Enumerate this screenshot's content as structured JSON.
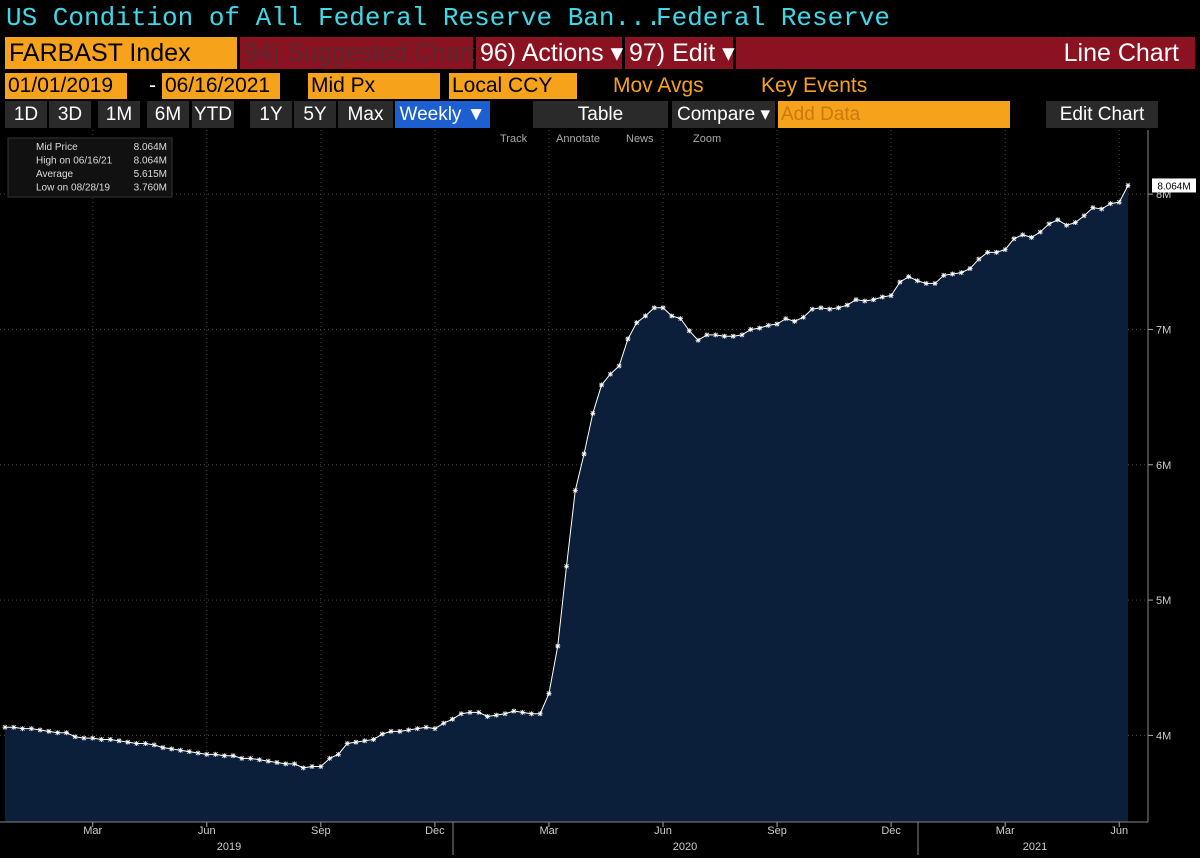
{
  "header": {
    "title": "US Condition of All Federal Reserve Ban...",
    "source": "Federal Reserve"
  },
  "toolbar": {
    "ticker": "FARBAST Index",
    "suggested": "94) Suggested Charts",
    "actions": "96) Actions ▾",
    "edit": "97) Edit ▾",
    "chart_kind": "Line Chart",
    "start_date": "01/01/2019",
    "dash": "-",
    "end_date": "06/16/2021",
    "field": "Mid Px",
    "currency": "Local CCY",
    "mov_avgs": "Mov Avgs",
    "key_events": "Key Events",
    "periods": [
      "1D",
      "3D",
      "1M",
      "6M",
      "YTD",
      "1Y",
      "5Y",
      "Max"
    ],
    "frequency": "Weekly ▼",
    "table": "Table",
    "compare": "Compare ▾",
    "add_data": "Add Data",
    "edit_chart": "Edit Chart",
    "tools": [
      "Track",
      "Annotate",
      "News",
      "Zoom"
    ]
  },
  "chart_data": {
    "type": "area",
    "color": "#ffffff",
    "fill": "#0b1f3a",
    "legend": [
      {
        "label": "Mid Price",
        "value": "8.064M"
      },
      {
        "label": "High on 06/16/21",
        "value": "8.064M"
      },
      {
        "label": "Average",
        "value": "5.615M"
      },
      {
        "label": "Low on 08/28/19",
        "value": "3.760M"
      }
    ],
    "categories": [
      null,
      null,
      null,
      null,
      null,
      null,
      null,
      null,
      null,
      null,
      "Mar",
      null,
      null,
      null,
      null,
      null,
      null,
      null,
      null,
      null,
      null,
      null,
      null,
      "Jun",
      null,
      null,
      null,
      null,
      null,
      null,
      null,
      null,
      null,
      null,
      null,
      null,
      "Sep",
      null,
      null,
      null,
      null,
      null,
      null,
      null,
      null,
      null,
      null,
      null,
      null,
      "Dec",
      null,
      null,
      null,
      null,
      null,
      null,
      null,
      null,
      null,
      null,
      null,
      null,
      "Mar",
      null,
      null,
      null,
      null,
      null,
      null,
      null,
      null,
      null,
      null,
      null,
      null,
      "Jun",
      null,
      null,
      null,
      null,
      null,
      null,
      null,
      null,
      null,
      null,
      null,
      null,
      "Sep",
      null,
      null,
      null,
      null,
      null,
      null,
      null,
      null,
      null,
      null,
      null,
      null,
      "Dec",
      null,
      null,
      null,
      null,
      null,
      null,
      null,
      null,
      null,
      null,
      null,
      null,
      "Mar",
      null,
      null,
      null,
      null,
      null,
      null,
      null,
      null,
      null,
      null,
      null,
      null,
      "Jun",
      null
    ],
    "values": [
      4.06,
      4.06,
      4.05,
      4.05,
      4.04,
      4.03,
      4.02,
      4.02,
      3.99,
      3.98,
      3.98,
      3.97,
      3.97,
      3.96,
      3.95,
      3.94,
      3.94,
      3.93,
      3.91,
      3.9,
      3.89,
      3.88,
      3.87,
      3.86,
      3.86,
      3.85,
      3.85,
      3.83,
      3.83,
      3.82,
      3.81,
      3.8,
      3.79,
      3.79,
      3.76,
      3.77,
      3.77,
      3.83,
      3.86,
      3.94,
      3.95,
      3.96,
      3.97,
      4.01,
      4.03,
      4.03,
      4.04,
      4.05,
      4.06,
      4.05,
      4.09,
      4.12,
      4.16,
      4.17,
      4.17,
      4.14,
      4.15,
      4.16,
      4.18,
      4.17,
      4.16,
      4.16,
      4.31,
      4.66,
      5.25,
      5.81,
      6.08,
      6.38,
      6.59,
      6.67,
      6.73,
      6.93,
      7.05,
      7.1,
      7.16,
      7.16,
      7.1,
      7.08,
      6.99,
      6.92,
      6.96,
      6.96,
      6.95,
      6.95,
      6.96,
      7.0,
      7.01,
      7.03,
      7.04,
      7.08,
      7.06,
      7.09,
      7.15,
      7.16,
      7.15,
      7.16,
      7.18,
      7.22,
      7.21,
      7.22,
      7.24,
      7.25,
      7.35,
      7.39,
      7.36,
      7.34,
      7.34,
      7.4,
      7.41,
      7.42,
      7.45,
      7.52,
      7.57,
      7.57,
      7.59,
      7.67,
      7.7,
      7.68,
      7.72,
      7.78,
      7.81,
      7.77,
      7.79,
      7.84,
      7.9,
      7.89,
      7.93,
      7.94,
      8.064
    ],
    "years": [
      "2019",
      "2020",
      "2021"
    ],
    "ylim": [
      3.36,
      8.4
    ],
    "yticks": [
      {
        "value": 4,
        "label": "4M"
      },
      {
        "value": 5,
        "label": "5M"
      },
      {
        "value": 6,
        "label": "6M"
      },
      {
        "value": 7,
        "label": "7M"
      },
      {
        "value": 8,
        "label": "8M"
      }
    ],
    "grid": true
  }
}
